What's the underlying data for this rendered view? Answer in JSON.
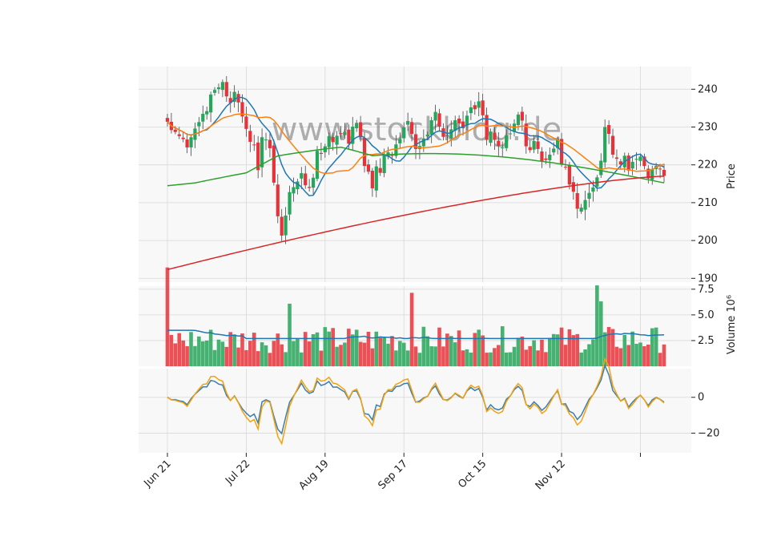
{
  "chart_data": [
    {
      "panel": "price",
      "type": "candlestick",
      "ylabel": "Price",
      "ylim": [
        189,
        246
      ],
      "yticks": [
        190,
        200,
        210,
        220,
        230,
        240
      ],
      "xticks": [
        {
          "index": 0,
          "label": "Jun 21"
        },
        {
          "index": 20,
          "label": "Jul 22"
        },
        {
          "index": 40,
          "label": "Aug 19"
        },
        {
          "index": 60,
          "label": "Sep 17"
        },
        {
          "index": 80,
          "label": "Oct 15"
        },
        {
          "index": 100,
          "label": "Nov 12"
        },
        {
          "index": 120,
          "label": ""
        }
      ],
      "watermark": "www.stockblog.de",
      "grid": true,
      "close": [
        231.4,
        229.2,
        228.7,
        227.6,
        226.8,
        224.6,
        227.3,
        229.6,
        231.3,
        233.5,
        234.2,
        238.6,
        239.8,
        240.5,
        241.9,
        238.1,
        236.4,
        239.3,
        236.5,
        232.8,
        229.5,
        226.1,
        225.2,
        218.6,
        227.3,
        226.7,
        224.4,
        215.3,
        206.4,
        201.3,
        206.6,
        212.8,
        214.1,
        215.6,
        217.8,
        214.6,
        213.9,
        216.6,
        223.7,
        222.9,
        224.9,
        227.6,
        226.0,
        227.7,
        228.3,
        228.7,
        225.6,
        230.1,
        231.1,
        227.3,
        219.7,
        218.2,
        213.8,
        219.6,
        217.9,
        222.8,
        223.3,
        222.5,
        225.4,
        226.8,
        229.9,
        231.6,
        228.2,
        224.2,
        225.0,
        227.0,
        228.0,
        231.8,
        234.0,
        230.1,
        227.4,
        227.6,
        229.4,
        231.8,
        230.9,
        229.7,
        233.0,
        235.2,
        234.7,
        236.8,
        233.1,
        226.6,
        228.8,
        226.6,
        225.0,
        224.6,
        227.8,
        228.3,
        230.9,
        233.3,
        231.7,
        224.9,
        223.9,
        226.3,
        224.2,
        220.9,
        221.3,
        222.7,
        224.3,
        226.9,
        220.1,
        219.5,
        214.8,
        212.9,
        208.4,
        208.7,
        210.7,
        212.6,
        214.0,
        216.7,
        221.1,
        230.0,
        228.2,
        222.7,
        221.6,
        220.1,
        222.4,
        218.5,
        220.8,
        221.6,
        222.2,
        219.7,
        216.4,
        218.9,
        219.7,
        218.9,
        217.1
      ]
    },
    {
      "panel": "volume",
      "type": "bar",
      "ylabel": "Volume  10⁶",
      "ylim": [
        0,
        7.8
      ],
      "yticks": [
        {
          "value": 2.5,
          "label": "2.5"
        },
        {
          "value": 5.0,
          "label": "5.0"
        },
        {
          "value": 7.5,
          "label": "7.5"
        }
      ],
      "overlay": "volume moving average"
    },
    {
      "panel": "oscillator",
      "type": "line",
      "ylim": [
        -31,
        16
      ],
      "yticks": [
        {
          "value": 0,
          "label": "0"
        },
        {
          "value": -20,
          "label": "−20"
        }
      ],
      "series_count": 2
    }
  ],
  "colors": {
    "up": "#26a65b",
    "down": "#e8323a",
    "ma_short": "#1f77b4",
    "ma_mid": "#ff7f0e",
    "ma_long": "#2ca02c",
    "ma_trend": "#d62728",
    "volume_ma": "#1f77b4",
    "osc_a": "#3a7eb0",
    "osc_b": "#f5a20a",
    "panel_bg": "#f8f8f8",
    "grid": "#d8d8d8"
  }
}
